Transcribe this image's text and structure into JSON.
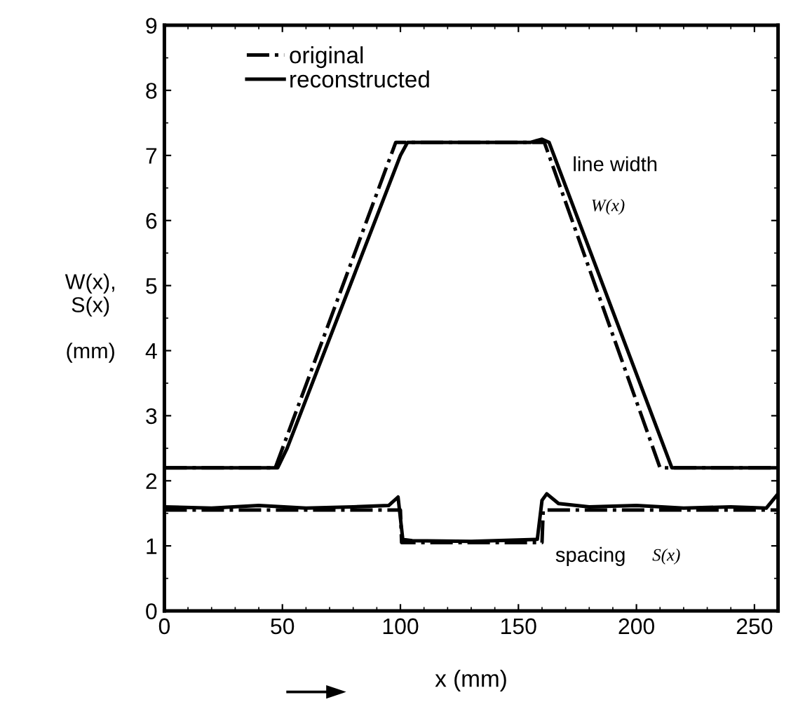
{
  "chart_data": {
    "type": "line",
    "xlabel": "x (mm)",
    "ylabel": "W(x),\nS(x)\n\n(mm)",
    "xlim": [
      0,
      260
    ],
    "xticks": [
      0,
      50,
      100,
      150,
      200,
      250
    ],
    "ylim": [
      0,
      9
    ],
    "yticks": [
      0,
      1,
      2,
      3,
      4,
      5,
      6,
      7,
      8,
      9
    ],
    "grid": false,
    "legend": "top left",
    "marker": "none",
    "series": [
      {
        "name": "original",
        "color": "#000000",
        "line_style": "dashdot",
        "x": [
          0,
          47,
          98,
          161,
          210,
          260
        ],
        "values": [
          2.2,
          2.2,
          7.2,
          7.2,
          2.2,
          2.2
        ]
      },
      {
        "name": "reconstructed",
        "color": "#000000",
        "line_style": "solid",
        "x": [
          0,
          48,
          52,
          100,
          103,
          155,
          160,
          163,
          215,
          260
        ],
        "values": [
          2.2,
          2.2,
          2.5,
          7.0,
          7.2,
          7.2,
          7.25,
          7.2,
          2.2,
          2.2
        ]
      },
      {
        "color": "#000000",
        "line_style": "dashdot",
        "x": [
          0,
          100,
          100.5,
          160,
          160.5,
          260
        ],
        "values": [
          1.55,
          1.55,
          1.05,
          1.05,
          1.55,
          1.55
        ]
      },
      {
        "color": "#000000",
        "line_style": "solid",
        "x": [
          0,
          20,
          40,
          60,
          80,
          95,
          99,
          101,
          105,
          130,
          158,
          160,
          162,
          167,
          180,
          200,
          220,
          240,
          255,
          260
        ],
        "values": [
          1.6,
          1.58,
          1.62,
          1.58,
          1.6,
          1.62,
          1.75,
          1.1,
          1.08,
          1.07,
          1.1,
          1.7,
          1.8,
          1.65,
          1.6,
          1.62,
          1.58,
          1.6,
          1.58,
          1.8
        ]
      }
    ],
    "annotations": [
      "line width",
      "W(x)",
      "spacing",
      "S(x)"
    ]
  }
}
